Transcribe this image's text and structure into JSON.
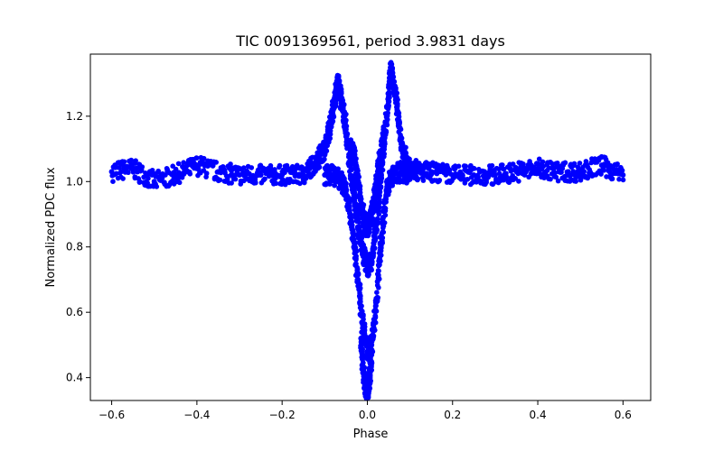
{
  "chart_data": {
    "type": "scatter",
    "title": "TIC 0091369561, period 3.9831 days",
    "xlabel": "Phase",
    "ylabel": "Normalized PDC flux",
    "xlim": [
      -0.65,
      0.665
    ],
    "ylim": [
      0.33,
      1.39
    ],
    "xticks": [
      -0.6,
      -0.4,
      -0.2,
      0.0,
      0.2,
      0.4,
      0.6
    ],
    "xtick_labels": [
      "−0.6",
      "−0.4",
      "−0.2",
      "0.0",
      "0.2",
      "0.4",
      "0.6"
    ],
    "yticks": [
      0.4,
      0.6,
      0.8,
      1.0,
      1.2
    ],
    "ytick_labels": [
      "0.4",
      "0.6",
      "0.8",
      "1.0",
      "1.2"
    ],
    "grid": false,
    "legend": "none",
    "marker_color": "#0000ff",
    "series": [
      {
        "x": [
          -0.6,
          -0.55,
          -0.5,
          -0.45,
          -0.4,
          -0.35,
          -0.3,
          -0.25,
          -0.2,
          -0.15,
          -0.12,
          -0.1,
          -0.085,
          -0.075,
          -0.07,
          -0.065,
          -0.06,
          -0.05,
          -0.04,
          -0.03,
          -0.02,
          -0.01,
          0.0,
          0.01,
          0.02,
          0.03,
          0.04,
          0.05,
          0.055,
          0.06,
          0.07,
          0.08,
          0.1,
          0.12,
          0.15,
          0.2,
          0.25,
          0.3,
          0.35,
          0.4,
          0.45,
          0.5,
          0.55,
          0.6
        ],
        "y": [
          1.03,
          1.04,
          1.0,
          1.02,
          1.05,
          1.03,
          1.02,
          1.02,
          1.02,
          1.02,
          1.06,
          1.1,
          1.18,
          1.26,
          1.3,
          1.28,
          1.24,
          1.16,
          1.05,
          0.95,
          0.85,
          0.78,
          0.74,
          0.76,
          0.85,
          0.98,
          1.12,
          1.26,
          1.34,
          1.32,
          1.22,
          1.1,
          1.05,
          1.03,
          1.03,
          1.02,
          1.02,
          1.02,
          1.03,
          1.04,
          1.03,
          1.03,
          1.05,
          1.02
        ]
      },
      {
        "x": [
          -0.1,
          -0.08,
          -0.06,
          -0.05,
          -0.04,
          -0.03,
          -0.02,
          -0.01,
          0.0,
          0.01,
          0.02,
          0.03,
          0.04,
          0.05,
          0.06,
          0.08,
          0.1
        ],
        "y": [
          1.02,
          1.02,
          1.0,
          0.97,
          0.9,
          0.8,
          0.68,
          0.56,
          0.48,
          0.5,
          0.62,
          0.78,
          0.92,
          1.0,
          1.02,
          1.03,
          1.02
        ]
      },
      {
        "x": [
          -0.04,
          -0.03,
          -0.02,
          -0.01,
          -0.005,
          0.0,
          0.005,
          0.01,
          0.02,
          0.03,
          0.04
        ],
        "y": [
          1.1,
          1.08,
          0.98,
          0.9,
          0.87,
          0.86,
          0.87,
          0.9,
          0.98,
          1.08,
          1.15
        ]
      },
      {
        "x": [
          -0.015,
          -0.01,
          -0.005,
          0.0,
          0.005,
          0.01
        ],
        "y": [
          0.52,
          0.43,
          0.38,
          0.36,
          0.4,
          0.47
        ]
      }
    ]
  }
}
